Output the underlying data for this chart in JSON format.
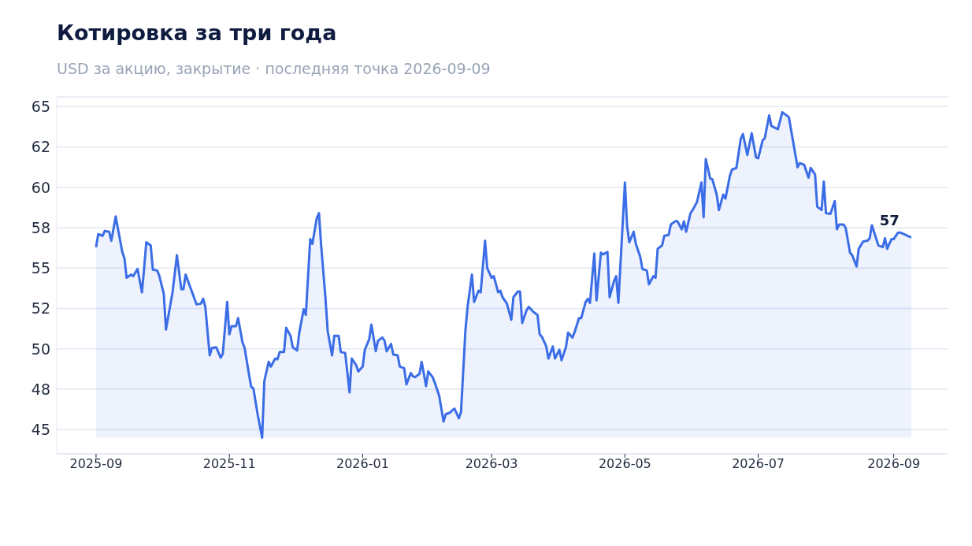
{
  "chart_data": {
    "type": "area",
    "title": "Котировка за три года",
    "subtitle": "USD за акцию, закрытие · последняя точка 2026-09-09",
    "x": [
      "2025-09-01",
      "2025-09-02",
      "2025-09-04",
      "2025-09-05",
      "2025-09-07",
      "2025-09-08",
      "2025-09-10",
      "2025-09-11",
      "2025-09-13",
      "2025-09-14",
      "2025-09-15",
      "2025-09-17",
      "2025-09-18",
      "2025-09-20",
      "2025-09-22",
      "2025-09-23",
      "2025-09-24",
      "2025-09-26",
      "2025-09-27",
      "2025-09-29",
      "2025-09-30",
      "2025-10-02",
      "2025-10-03",
      "2025-10-06",
      "2025-10-08",
      "2025-10-10",
      "2025-10-11",
      "2025-10-12",
      "2025-10-17",
      "2025-10-19",
      "2025-10-20",
      "2025-10-21",
      "2025-10-23",
      "2025-10-24",
      "2025-10-26",
      "2025-10-28",
      "2025-10-29",
      "2025-10-31",
      "2025-11-01",
      "2025-11-02",
      "2025-11-04",
      "2025-11-05",
      "2025-11-07",
      "2025-11-08",
      "2025-11-10",
      "2025-11-11",
      "2025-11-12",
      "2025-11-14",
      "2025-11-16",
      "2025-11-17",
      "2025-11-19",
      "2025-11-20",
      "2025-11-22",
      "2025-11-23",
      "2025-11-24",
      "2025-11-26",
      "2025-11-27",
      "2025-11-29",
      "2025-11-30",
      "2025-12-02",
      "2025-12-03",
      "2025-12-05",
      "2025-12-06",
      "2025-12-08",
      "2025-12-09",
      "2025-12-11",
      "2025-12-12",
      "2025-12-13",
      "2025-12-15",
      "2025-12-16",
      "2025-12-18",
      "2025-12-19",
      "2025-12-21",
      "2025-12-22",
      "2025-12-24",
      "2025-12-26",
      "2025-12-27",
      "2025-12-29",
      "2025-12-30",
      "2026-01-01",
      "2026-01-02",
      "2026-01-04",
      "2026-01-05",
      "2026-01-07",
      "2026-01-08",
      "2026-01-10",
      "2026-01-11",
      "2026-01-12",
      "2026-01-14",
      "2026-01-15",
      "2026-01-17",
      "2026-01-18",
      "2026-01-20",
      "2026-01-21",
      "2026-01-23",
      "2026-01-24",
      "2026-01-25",
      "2026-01-27",
      "2026-01-28",
      "2026-01-30",
      "2026-01-31",
      "2026-02-02",
      "2026-02-03",
      "2026-02-05",
      "2026-02-07",
      "2026-02-08",
      "2026-02-10",
      "2026-02-11",
      "2026-02-12",
      "2026-02-14",
      "2026-02-15",
      "2026-02-17",
      "2026-02-18",
      "2026-02-20",
      "2026-02-21",
      "2026-02-23",
      "2026-02-24",
      "2026-02-26",
      "2026-02-27",
      "2026-03-01",
      "2026-03-02",
      "2026-03-04",
      "2026-03-05",
      "2026-03-06",
      "2026-03-08",
      "2026-03-10",
      "2026-03-11",
      "2026-03-13",
      "2026-03-14",
      "2026-03-15",
      "2026-03-17",
      "2026-03-18",
      "2026-03-20",
      "2026-03-22",
      "2026-03-23",
      "2026-03-24",
      "2026-03-26",
      "2026-03-27",
      "2026-03-29",
      "2026-03-30",
      "2026-04-01",
      "2026-04-02",
      "2026-04-04",
      "2026-04-05",
      "2026-04-07",
      "2026-04-08",
      "2026-04-10",
      "2026-04-11",
      "2026-04-13",
      "2026-04-14",
      "2026-04-15",
      "2026-04-17",
      "2026-04-18",
      "2026-04-20",
      "2026-04-21",
      "2026-04-23",
      "2026-04-24",
      "2026-04-26",
      "2026-04-27",
      "2026-04-28",
      "2026-05-01",
      "2026-05-02",
      "2026-05-03",
      "2026-05-05",
      "2026-05-06",
      "2026-05-08",
      "2026-05-09",
      "2026-05-11",
      "2026-05-12",
      "2026-05-14",
      "2026-05-15",
      "2026-05-16",
      "2026-05-18",
      "2026-05-19",
      "2026-05-21",
      "2026-05-22",
      "2026-05-24",
      "2026-05-25",
      "2026-05-27",
      "2026-05-28",
      "2026-05-29",
      "2026-05-31",
      "2026-06-01",
      "2026-06-03",
      "2026-06-05",
      "2026-06-06",
      "2026-06-07",
      "2026-06-09",
      "2026-06-10",
      "2026-06-12",
      "2026-06-13",
      "2026-06-15",
      "2026-06-16",
      "2026-06-18",
      "2026-06-19",
      "2026-06-21",
      "2026-06-23",
      "2026-06-24",
      "2026-06-26",
      "2026-06-28",
      "2026-06-30",
      "2026-07-01",
      "2026-07-03",
      "2026-07-04",
      "2026-07-06",
      "2026-07-07",
      "2026-07-10",
      "2026-07-12",
      "2026-07-15",
      "2026-07-19",
      "2026-07-20",
      "2026-07-22",
      "2026-07-24",
      "2026-07-25",
      "2026-07-27",
      "2026-07-28",
      "2026-07-30",
      "2026-07-31",
      "2026-08-01",
      "2026-08-03",
      "2026-08-05",
      "2026-08-06",
      "2026-08-07",
      "2026-08-09",
      "2026-08-10",
      "2026-08-12",
      "2026-08-13",
      "2026-08-15",
      "2026-08-16",
      "2026-08-18",
      "2026-08-20",
      "2026-08-21",
      "2026-08-22",
      "2026-08-25",
      "2026-08-27",
      "2026-08-28",
      "2026-08-29",
      "2026-08-31",
      "2026-09-01",
      "2026-09-03",
      "2026-09-04",
      "2026-09-09"
    ],
    "series": [
      {
        "color": "#3b6de6",
        "values": [
          56.3,
          57.1,
          57.0,
          57.3,
          57.25,
          56.7,
          58.2,
          57.45,
          56.0,
          55.6,
          54.4,
          54.6,
          54.5,
          54.95,
          53.5,
          55.0,
          56.6,
          56.4,
          54.9,
          54.85,
          54.5,
          53.4,
          51.2,
          53.5,
          55.8,
          53.7,
          53.7,
          54.6,
          52.75,
          52.8,
          53.1,
          52.6,
          49.6,
          50.05,
          50.1,
          49.45,
          49.7,
          52.9,
          50.9,
          51.4,
          51.4,
          51.9,
          50.4,
          50.05,
          48.4,
          47.65,
          47.55,
          45.9,
          44.5,
          48.0,
          49.2,
          48.9,
          49.4,
          49.35,
          49.8,
          49.8,
          51.3,
          50.8,
          50.1,
          49.9,
          51.0,
          52.45,
          52.1,
          56.8,
          56.5,
          58.1,
          58.4,
          56.4,
          53.1,
          51.1,
          49.6,
          50.8,
          50.8,
          49.8,
          49.75,
          47.3,
          49.4,
          49.0,
          48.6,
          48.9,
          49.95,
          50.6,
          51.5,
          49.85,
          50.5,
          50.7,
          50.5,
          49.85,
          50.3,
          49.65,
          49.6,
          48.9,
          48.8,
          47.8,
          48.5,
          48.3,
          48.25,
          48.45,
          49.2,
          47.7,
          48.6,
          48.25,
          47.9,
          47.1,
          45.5,
          45.95,
          46.05,
          46.2,
          46.3,
          45.7,
          46.1,
          51.1,
          52.6,
          54.6,
          52.9,
          53.6,
          53.5,
          56.7,
          55.0,
          54.4,
          54.5,
          53.5,
          53.6,
          53.2,
          52.8,
          51.8,
          53.2,
          53.55,
          53.55,
          51.6,
          52.4,
          52.6,
          52.3,
          52.1,
          50.9,
          50.75,
          50.15,
          49.4,
          50.15,
          49.4,
          49.95,
          49.3,
          50.1,
          51.0,
          50.7,
          51.05,
          51.9,
          51.9,
          52.9,
          53.1,
          52.85,
          55.9,
          53.0,
          55.95,
          55.85,
          56.0,
          53.2,
          54.2,
          54.5,
          52.85,
          60.3,
          57.6,
          56.6,
          57.25,
          56.5,
          55.7,
          54.95,
          54.85,
          54.0,
          54.5,
          54.4,
          56.2,
          56.4,
          57.0,
          57.05,
          57.7,
          57.9,
          57.9,
          57.4,
          57.9,
          57.25,
          58.4,
          58.6,
          59.1,
          60.3,
          58.15,
          61.75,
          60.55,
          60.5,
          59.55,
          58.6,
          59.55,
          59.3,
          60.7,
          61.1,
          61.2,
          63.0,
          63.3,
          62.0,
          63.35,
          61.85,
          61.8,
          62.9,
          63.05,
          64.45,
          63.8,
          63.6,
          64.65,
          64.35,
          61.25,
          61.5,
          61.4,
          60.6,
          61.2,
          60.8,
          58.8,
          58.6,
          60.35,
          58.4,
          58.35,
          59.15,
          57.4,
          57.7,
          57.7,
          57.5,
          55.95,
          55.8,
          55.1,
          56.2,
          56.65,
          56.7,
          56.85,
          57.65,
          56.4,
          56.3,
          56.85,
          56.2,
          56.8,
          56.8,
          57.2,
          57.2,
          56.9
        ]
      }
    ],
    "xlim": [
      "2025-08-14",
      "2026-09-26"
    ],
    "xticks": [
      "2025-09",
      "2025-11",
      "2026-01",
      "2026-03",
      "2026-05",
      "2026-07",
      "2026-09"
    ],
    "ylim": [
      43.5,
      65.6
    ],
    "yticks": [
      45,
      {
        "value": 47.5,
        "label": "48"
      },
      50,
      {
        "value": 52.5,
        "label": "52"
      },
      55,
      {
        "value": 57.5,
        "label": "58"
      },
      60,
      {
        "value": 62.5,
        "label": "62"
      },
      65
    ],
    "grid": "y",
    "annotations": [
      {
        "text": "57",
        "x": "2026-09-09",
        "y": 56.9
      }
    ]
  }
}
